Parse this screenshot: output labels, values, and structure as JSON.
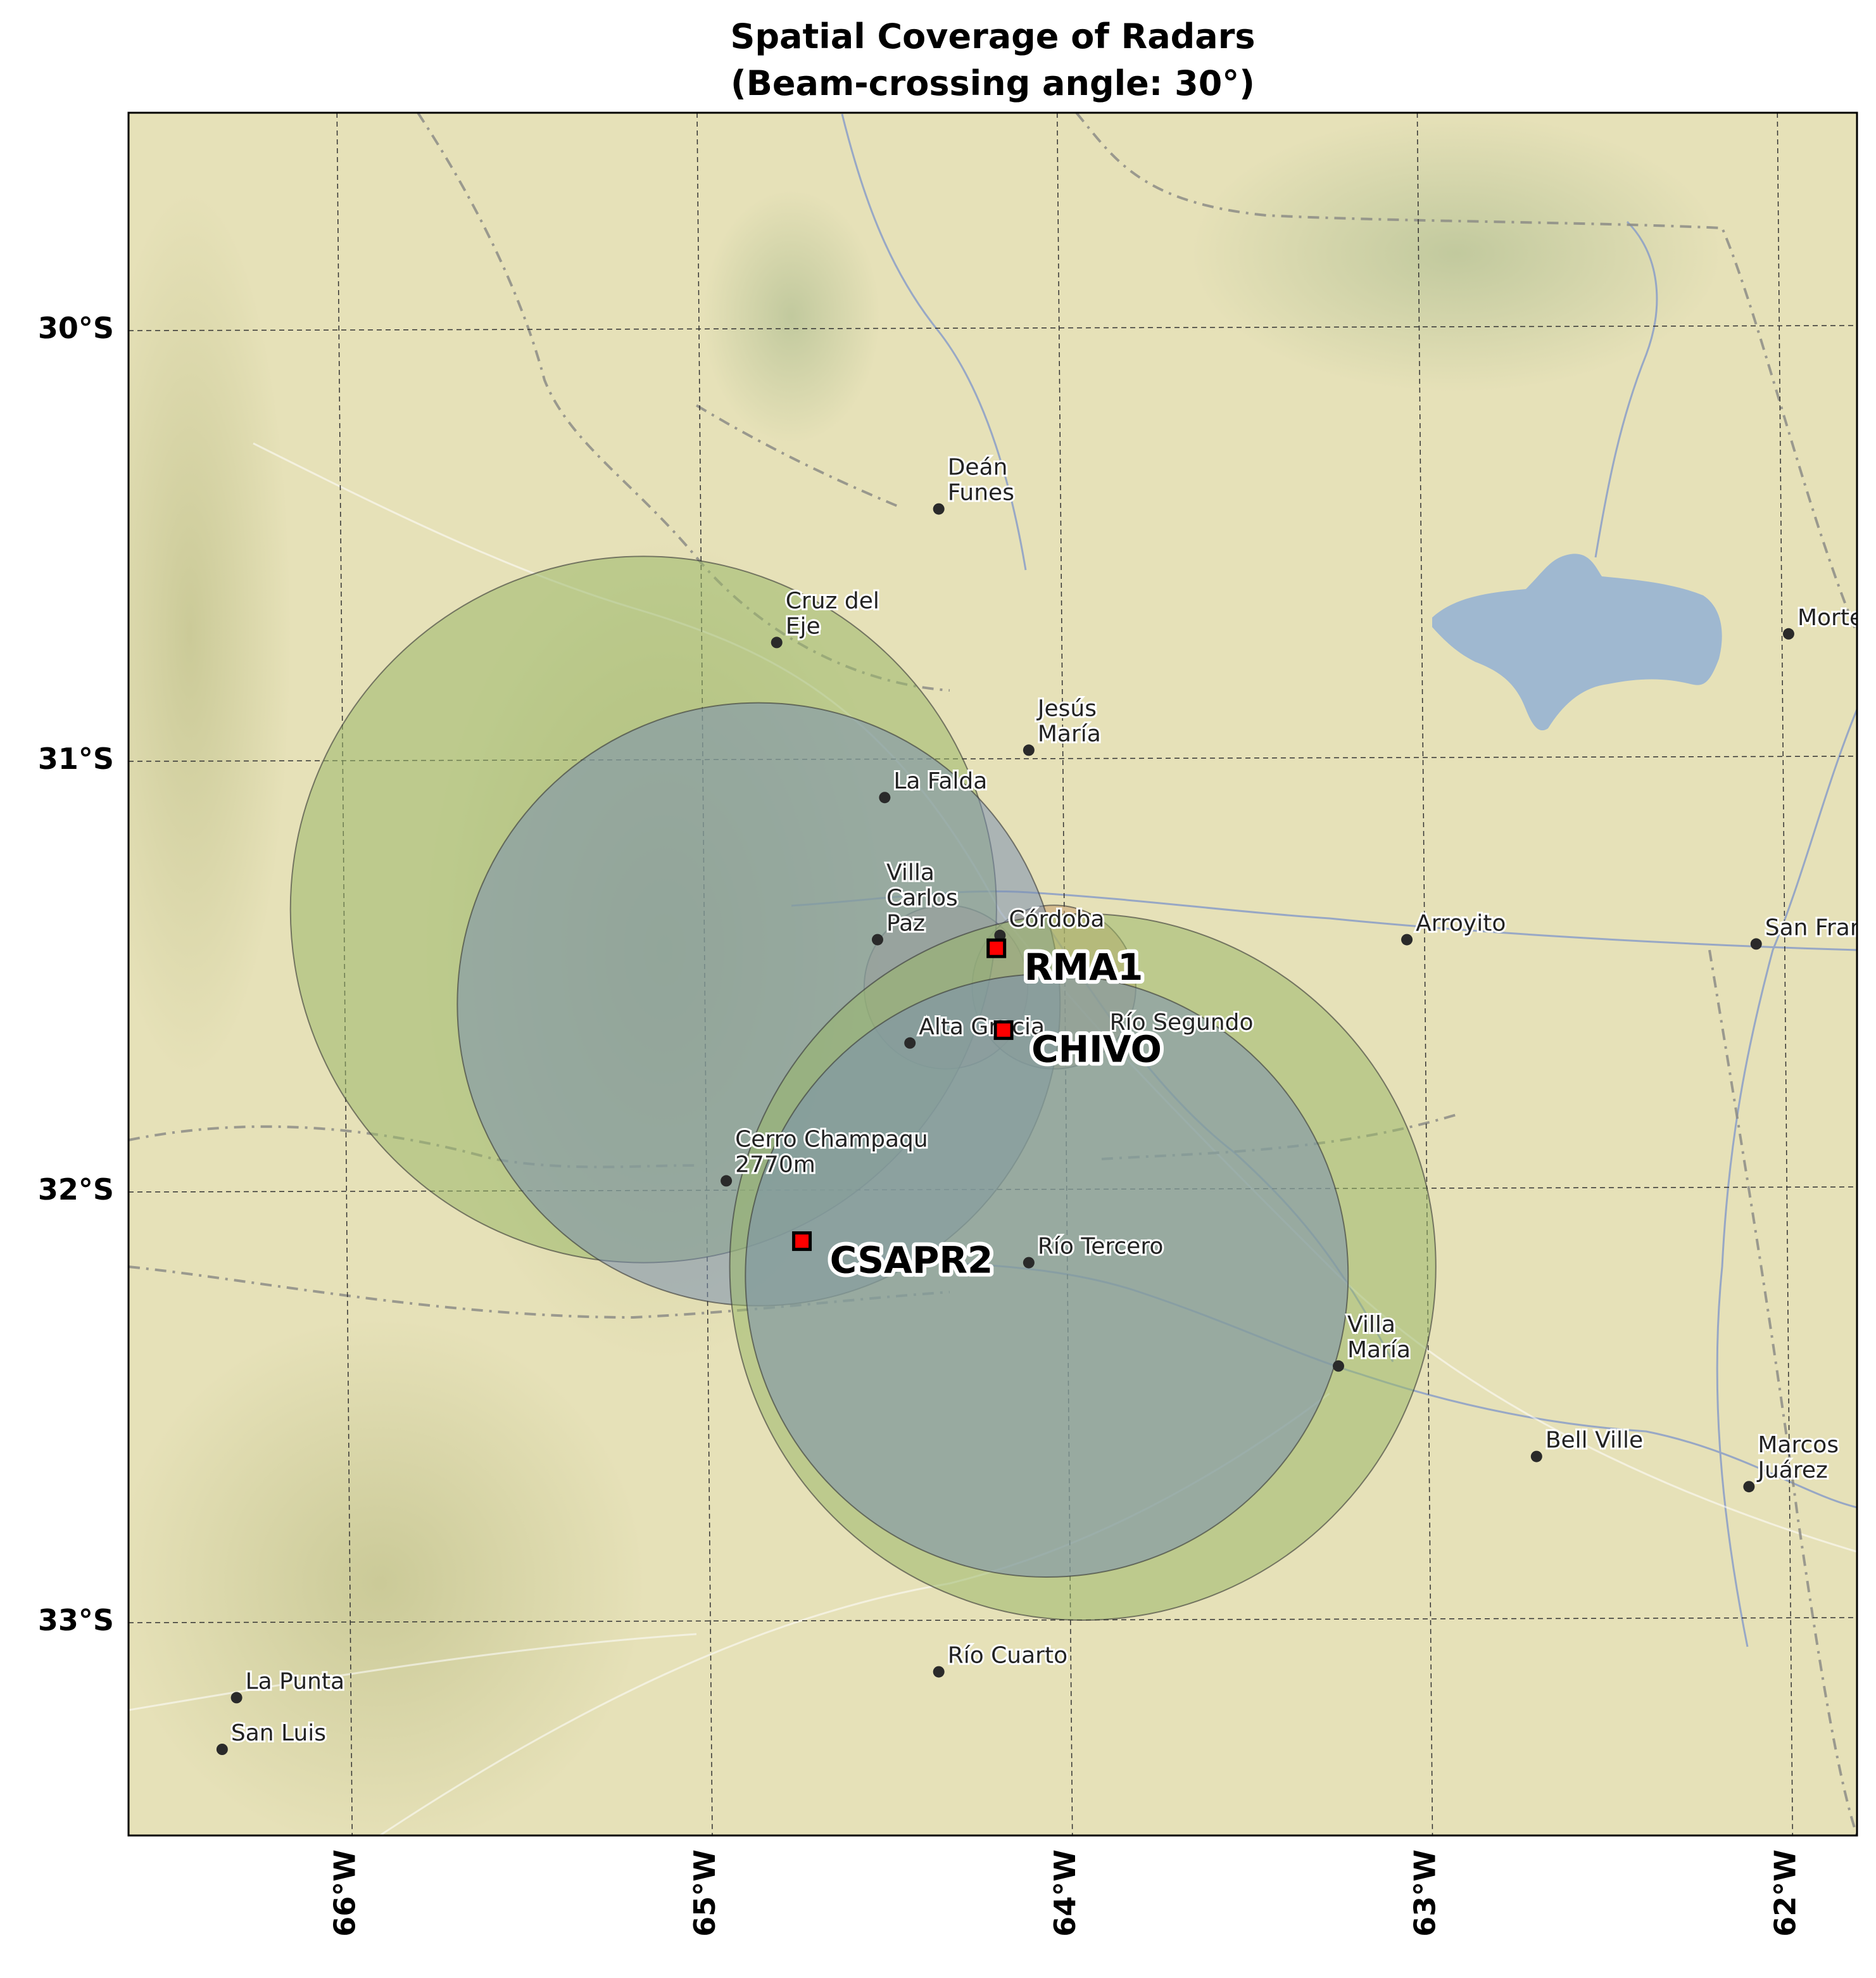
{
  "title": {
    "line1": "Spatial Coverage of Radars",
    "line2": "(Beam-crossing angle: 30°)"
  },
  "axes": {
    "lon_ticks": [
      "66°W",
      "65°W",
      "64°W",
      "63°W",
      "62°W"
    ],
    "lat_ticks": [
      "30°S",
      "31°S",
      "32°S",
      "33°S"
    ],
    "lon_values": [
      -66,
      -65,
      -64,
      -63,
      -62
    ],
    "lat_values": [
      -30,
      -31,
      -32,
      -33
    ],
    "lon_range": [
      -66.6,
      -61.8
    ],
    "lat_range": [
      -29.5,
      -33.5
    ]
  },
  "basemap": {
    "land_color": "#e6e1b8",
    "water_color": "#9fb8d0",
    "grid": true
  },
  "lake": {
    "name_shown": false
  },
  "radars": [
    {
      "name": "RMA1",
      "lon": -64.19,
      "lat": -31.44
    },
    {
      "name": "CHIVO",
      "lon": -64.17,
      "lat": -31.63
    },
    {
      "name": "CSAPR2",
      "lon": -64.73,
      "lat": -32.12
    }
  ],
  "coverage_circles": [
    {
      "pair": "RMA1-CHIVO",
      "color": "#e8a0a0",
      "center_lon": -64.33,
      "center_lat": -31.53,
      "radius_deg_lat": 0.19
    },
    {
      "pair": "RMA1-CHIVO",
      "color": "#c8a070",
      "center_lon": -64.03,
      "center_lat": -31.53,
      "radius_deg_lat": 0.19
    },
    {
      "pair": "RMA1-CSAPR2",
      "color": "#9ab86a",
      "center_lon": -65.17,
      "center_lat": -31.35,
      "radius_deg_lat": 0.82
    },
    {
      "pair": "RMA1-CSAPR2",
      "color": "#7a8fb0",
      "center_lon": -64.85,
      "center_lat": -31.57,
      "radius_deg_lat": 0.7
    },
    {
      "pair": "CHIVO-CSAPR2",
      "color": "#9ab86a",
      "center_lon": -63.95,
      "center_lat": -32.18,
      "radius_deg_lat": 0.82
    },
    {
      "pair": "CHIVO-CSAPR2",
      "color": "#7a8fb0",
      "center_lon": -64.05,
      "center_lat": -32.2,
      "radius_deg_lat": 0.7
    }
  ],
  "cities": [
    {
      "name": "Deán",
      "name2": "Funes",
      "lon": -64.35,
      "lat": -30.42
    },
    {
      "name": "Cruz del",
      "name2": "Eje",
      "lon": -64.8,
      "lat": -30.73
    },
    {
      "name": "Jesús",
      "name2": "María",
      "lon": -64.1,
      "lat": -30.98
    },
    {
      "name": "La Falda",
      "name2": "",
      "lon": -64.5,
      "lat": -31.09
    },
    {
      "name": "Villa",
      "name2": "Carlos",
      "name3": "Paz",
      "lon": -64.52,
      "lat": -31.42
    },
    {
      "name": "Córdoba",
      "name2": "",
      "lon": -64.18,
      "lat": -31.41
    },
    {
      "name": "Alta Gracia",
      "name2": "",
      "lon": -64.43,
      "lat": -31.66
    },
    {
      "name": "Río Segundo",
      "name2": "",
      "lon": -63.9,
      "lat": -31.65
    },
    {
      "name": "Arroyito",
      "name2": "",
      "lon": -63.05,
      "lat": -31.42
    },
    {
      "name": "San Francisco",
      "name2": "",
      "lon": -62.08,
      "lat": -31.43
    },
    {
      "name": "Morteros",
      "name2": "",
      "lon": -61.99,
      "lat": -30.71
    },
    {
      "name": "Cerro Champaqu",
      "name2": "2770m",
      "lon": -64.94,
      "lat": -31.98
    },
    {
      "name": "Río Tercero",
      "name2": "",
      "lon": -64.1,
      "lat": -32.17
    },
    {
      "name": "Villa",
      "name2": "María",
      "lon": -63.24,
      "lat": -32.41
    },
    {
      "name": "Bell Ville",
      "name2": "",
      "lon": -62.69,
      "lat": -32.62
    },
    {
      "name": "Marcos",
      "name2": "Juárez",
      "lon": -62.1,
      "lat": -32.69
    },
    {
      "name": "Río Cuarto",
      "name2": "",
      "lon": -64.35,
      "lat": -33.12
    },
    {
      "name": "La Punta",
      "name2": "",
      "lon": -66.3,
      "lat": -33.18
    },
    {
      "name": "San Luis",
      "name2": "",
      "lon": -66.34,
      "lat": -33.3
    }
  ]
}
